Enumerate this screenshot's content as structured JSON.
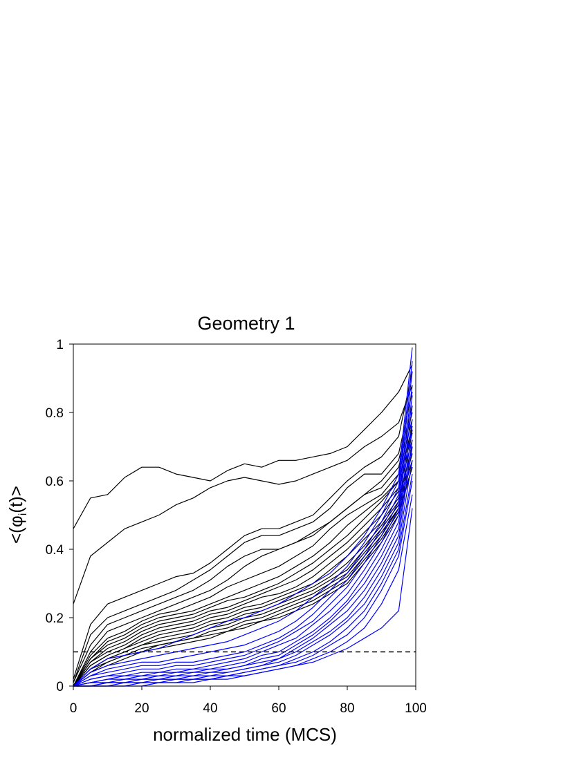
{
  "chart_data": {
    "type": "line",
    "title": "Geometry 1",
    "xlabel": "normalized time (MCS)",
    "ylabel_parts": {
      "lead": "<(φ",
      "sub": "i",
      "tail": "(t)>"
    },
    "xlim": [
      0,
      100
    ],
    "ylim": [
      0,
      1
    ],
    "x_ticks": [
      0,
      20,
      40,
      60,
      80,
      100
    ],
    "y_ticks": [
      0,
      0.2,
      0.4,
      0.6,
      0.8,
      1
    ],
    "x_tick_labels": [
      "0",
      "20",
      "40",
      "60",
      "80",
      "100"
    ],
    "y_tick_labels": [
      "0",
      "0.2",
      "0.4",
      "0.6",
      "0.8",
      "1"
    ],
    "grid": false,
    "threshold": {
      "y": 0.1,
      "style": "dashed",
      "color": "#000000"
    },
    "colors": {
      "black_group": "#000000",
      "blue_group": "#0000ff"
    },
    "x": [
      0,
      5,
      10,
      15,
      20,
      25,
      30,
      35,
      40,
      45,
      50,
      55,
      60,
      65,
      70,
      75,
      80,
      85,
      90,
      95,
      99
    ],
    "series": [
      {
        "group": "black",
        "values": [
          0.46,
          0.55,
          0.56,
          0.61,
          0.64,
          0.64,
          0.62,
          0.61,
          0.6,
          0.63,
          0.65,
          0.64,
          0.66,
          0.66,
          0.67,
          0.68,
          0.7,
          0.75,
          0.8,
          0.86,
          0.94
        ]
      },
      {
        "group": "black",
        "values": [
          0.24,
          0.38,
          0.42,
          0.46,
          0.48,
          0.5,
          0.53,
          0.55,
          0.58,
          0.6,
          0.61,
          0.6,
          0.59,
          0.6,
          0.62,
          0.64,
          0.66,
          0.7,
          0.73,
          0.77,
          0.88
        ]
      },
      {
        "group": "black",
        "values": [
          0.02,
          0.18,
          0.24,
          0.26,
          0.28,
          0.3,
          0.32,
          0.33,
          0.36,
          0.4,
          0.44,
          0.46,
          0.46,
          0.48,
          0.5,
          0.55,
          0.6,
          0.64,
          0.67,
          0.73,
          0.92
        ]
      },
      {
        "group": "black",
        "values": [
          0.01,
          0.15,
          0.2,
          0.22,
          0.24,
          0.26,
          0.28,
          0.31,
          0.34,
          0.38,
          0.42,
          0.44,
          0.44,
          0.46,
          0.48,
          0.52,
          0.58,
          0.62,
          0.62,
          0.68,
          0.86
        ]
      },
      {
        "group": "black",
        "values": [
          0.01,
          0.12,
          0.18,
          0.2,
          0.22,
          0.24,
          0.26,
          0.28,
          0.31,
          0.35,
          0.38,
          0.4,
          0.4,
          0.42,
          0.44,
          0.48,
          0.52,
          0.56,
          0.6,
          0.66,
          0.82
        ]
      },
      {
        "group": "black",
        "values": [
          0.0,
          0.1,
          0.16,
          0.18,
          0.2,
          0.22,
          0.24,
          0.26,
          0.28,
          0.31,
          0.35,
          0.38,
          0.4,
          0.42,
          0.45,
          0.48,
          0.52,
          0.56,
          0.58,
          0.64,
          0.8
        ]
      },
      {
        "group": "black",
        "values": [
          0.0,
          0.09,
          0.14,
          0.16,
          0.19,
          0.21,
          0.22,
          0.24,
          0.26,
          0.29,
          0.31,
          0.33,
          0.35,
          0.38,
          0.41,
          0.46,
          0.5,
          0.53,
          0.56,
          0.62,
          0.78
        ]
      },
      {
        "group": "black",
        "values": [
          0.0,
          0.08,
          0.13,
          0.15,
          0.18,
          0.2,
          0.21,
          0.22,
          0.24,
          0.26,
          0.28,
          0.3,
          0.32,
          0.35,
          0.38,
          0.42,
          0.47,
          0.51,
          0.55,
          0.6,
          0.76
        ]
      },
      {
        "group": "black",
        "values": [
          0.0,
          0.08,
          0.12,
          0.14,
          0.17,
          0.19,
          0.2,
          0.21,
          0.23,
          0.25,
          0.26,
          0.28,
          0.3,
          0.33,
          0.36,
          0.4,
          0.44,
          0.49,
          0.54,
          0.6,
          0.75
        ]
      },
      {
        "group": "black",
        "values": [
          0.0,
          0.07,
          0.11,
          0.13,
          0.16,
          0.18,
          0.19,
          0.2,
          0.22,
          0.23,
          0.25,
          0.27,
          0.29,
          0.31,
          0.34,
          0.38,
          0.42,
          0.47,
          0.52,
          0.58,
          0.74
        ]
      },
      {
        "group": "black",
        "values": [
          0.0,
          0.07,
          0.1,
          0.12,
          0.15,
          0.17,
          0.18,
          0.19,
          0.21,
          0.22,
          0.24,
          0.26,
          0.27,
          0.29,
          0.32,
          0.36,
          0.4,
          0.45,
          0.5,
          0.57,
          0.72
        ]
      },
      {
        "group": "black",
        "values": [
          0.0,
          0.06,
          0.09,
          0.11,
          0.14,
          0.16,
          0.17,
          0.18,
          0.2,
          0.21,
          0.23,
          0.24,
          0.26,
          0.28,
          0.3,
          0.34,
          0.38,
          0.43,
          0.48,
          0.55,
          0.7
        ]
      },
      {
        "group": "black",
        "values": [
          0.0,
          0.06,
          0.09,
          0.11,
          0.13,
          0.15,
          0.16,
          0.17,
          0.19,
          0.2,
          0.22,
          0.23,
          0.25,
          0.27,
          0.29,
          0.32,
          0.36,
          0.41,
          0.47,
          0.54,
          0.7
        ]
      },
      {
        "group": "black",
        "values": [
          0.0,
          0.05,
          0.08,
          0.1,
          0.12,
          0.14,
          0.15,
          0.16,
          0.18,
          0.19,
          0.21,
          0.22,
          0.24,
          0.26,
          0.28,
          0.31,
          0.34,
          0.4,
          0.46,
          0.53,
          0.68
        ]
      },
      {
        "group": "black",
        "values": [
          0.0,
          0.05,
          0.08,
          0.1,
          0.12,
          0.13,
          0.14,
          0.15,
          0.17,
          0.18,
          0.2,
          0.21,
          0.23,
          0.25,
          0.27,
          0.3,
          0.33,
          0.39,
          0.45,
          0.52,
          0.66
        ]
      },
      {
        "group": "black",
        "values": [
          0.0,
          0.05,
          0.07,
          0.09,
          0.11,
          0.12,
          0.13,
          0.14,
          0.16,
          0.17,
          0.19,
          0.2,
          0.22,
          0.24,
          0.26,
          0.29,
          0.32,
          0.38,
          0.44,
          0.52,
          0.66
        ]
      },
      {
        "group": "black",
        "values": [
          0.0,
          0.04,
          0.07,
          0.09,
          0.1,
          0.12,
          0.13,
          0.14,
          0.15,
          0.16,
          0.18,
          0.19,
          0.21,
          0.23,
          0.25,
          0.28,
          0.31,
          0.37,
          0.43,
          0.51,
          0.64
        ]
      },
      {
        "group": "black",
        "values": [
          0.0,
          0.04,
          0.06,
          0.08,
          0.1,
          0.11,
          0.12,
          0.13,
          0.14,
          0.16,
          0.17,
          0.19,
          0.2,
          0.22,
          0.24,
          0.27,
          0.3,
          0.36,
          0.42,
          0.5,
          0.64
        ]
      },
      {
        "group": "blue",
        "values": [
          0.0,
          0.05,
          0.08,
          0.09,
          0.1,
          0.11,
          0.13,
          0.15,
          0.17,
          0.19,
          0.2,
          0.22,
          0.24,
          0.27,
          0.3,
          0.33,
          0.38,
          0.44,
          0.52,
          0.62,
          0.99
        ]
      },
      {
        "group": "blue",
        "values": [
          0.0,
          0.04,
          0.06,
          0.07,
          0.08,
          0.09,
          0.1,
          0.11,
          0.12,
          0.13,
          0.15,
          0.17,
          0.19,
          0.22,
          0.26,
          0.3,
          0.35,
          0.42,
          0.5,
          0.6,
          0.95
        ]
      },
      {
        "group": "blue",
        "values": [
          0.0,
          0.03,
          0.05,
          0.06,
          0.07,
          0.07,
          0.08,
          0.09,
          0.1,
          0.11,
          0.12,
          0.14,
          0.16,
          0.19,
          0.23,
          0.28,
          0.33,
          0.4,
          0.48,
          0.58,
          0.92
        ]
      },
      {
        "group": "blue",
        "values": [
          0.0,
          0.03,
          0.04,
          0.05,
          0.06,
          0.06,
          0.07,
          0.07,
          0.08,
          0.09,
          0.1,
          0.12,
          0.14,
          0.17,
          0.21,
          0.26,
          0.31,
          0.38,
          0.46,
          0.56,
          0.88
        ]
      },
      {
        "group": "blue",
        "values": [
          0.0,
          0.02,
          0.03,
          0.04,
          0.05,
          0.05,
          0.06,
          0.06,
          0.07,
          0.08,
          0.09,
          0.11,
          0.13,
          0.16,
          0.19,
          0.24,
          0.29,
          0.36,
          0.44,
          0.54,
          0.85
        ]
      },
      {
        "group": "blue",
        "values": [
          0.0,
          0.02,
          0.03,
          0.03,
          0.04,
          0.04,
          0.05,
          0.05,
          0.06,
          0.07,
          0.08,
          0.1,
          0.12,
          0.14,
          0.18,
          0.22,
          0.27,
          0.34,
          0.42,
          0.52,
          0.82
        ]
      },
      {
        "group": "blue",
        "values": [
          0.0,
          0.01,
          0.02,
          0.03,
          0.03,
          0.04,
          0.04,
          0.05,
          0.05,
          0.06,
          0.07,
          0.09,
          0.1,
          0.13,
          0.16,
          0.2,
          0.25,
          0.32,
          0.4,
          0.5,
          0.78
        ]
      },
      {
        "group": "blue",
        "values": [
          0.0,
          0.01,
          0.02,
          0.02,
          0.03,
          0.03,
          0.04,
          0.04,
          0.05,
          0.05,
          0.06,
          0.08,
          0.09,
          0.12,
          0.15,
          0.19,
          0.24,
          0.3,
          0.38,
          0.48,
          0.75
        ]
      },
      {
        "group": "blue",
        "values": [
          0.0,
          0.01,
          0.01,
          0.02,
          0.02,
          0.03,
          0.03,
          0.04,
          0.04,
          0.05,
          0.06,
          0.07,
          0.08,
          0.11,
          0.14,
          0.18,
          0.22,
          0.28,
          0.36,
          0.46,
          0.72
        ]
      },
      {
        "group": "blue",
        "values": [
          0.0,
          0.01,
          0.01,
          0.01,
          0.02,
          0.02,
          0.03,
          0.03,
          0.04,
          0.04,
          0.05,
          0.06,
          0.08,
          0.1,
          0.13,
          0.16,
          0.2,
          0.26,
          0.34,
          0.44,
          0.7
        ]
      },
      {
        "group": "blue",
        "values": [
          0.0,
          0.0,
          0.01,
          0.01,
          0.02,
          0.02,
          0.02,
          0.03,
          0.03,
          0.04,
          0.05,
          0.06,
          0.07,
          0.09,
          0.12,
          0.15,
          0.19,
          0.24,
          0.32,
          0.42,
          0.66
        ]
      },
      {
        "group": "blue",
        "values": [
          0.0,
          0.0,
          0.01,
          0.01,
          0.01,
          0.02,
          0.02,
          0.02,
          0.03,
          0.03,
          0.04,
          0.05,
          0.06,
          0.08,
          0.1,
          0.13,
          0.17,
          0.22,
          0.3,
          0.4,
          0.62
        ]
      },
      {
        "group": "blue",
        "values": [
          0.0,
          0.0,
          0.0,
          0.01,
          0.01,
          0.01,
          0.02,
          0.02,
          0.02,
          0.03,
          0.04,
          0.05,
          0.06,
          0.07,
          0.09,
          0.12,
          0.15,
          0.2,
          0.28,
          0.38,
          0.6
        ]
      },
      {
        "group": "blue",
        "values": [
          0.0,
          0.0,
          0.0,
          0.0,
          0.01,
          0.01,
          0.01,
          0.02,
          0.02,
          0.03,
          0.03,
          0.04,
          0.05,
          0.06,
          0.08,
          0.1,
          0.13,
          0.17,
          0.24,
          0.34,
          0.56
        ]
      },
      {
        "group": "blue",
        "values": [
          0.0,
          0.0,
          0.0,
          0.0,
          0.0,
          0.01,
          0.01,
          0.01,
          0.02,
          0.02,
          0.03,
          0.04,
          0.05,
          0.06,
          0.07,
          0.09,
          0.11,
          0.14,
          0.17,
          0.22,
          0.52
        ]
      }
    ]
  }
}
